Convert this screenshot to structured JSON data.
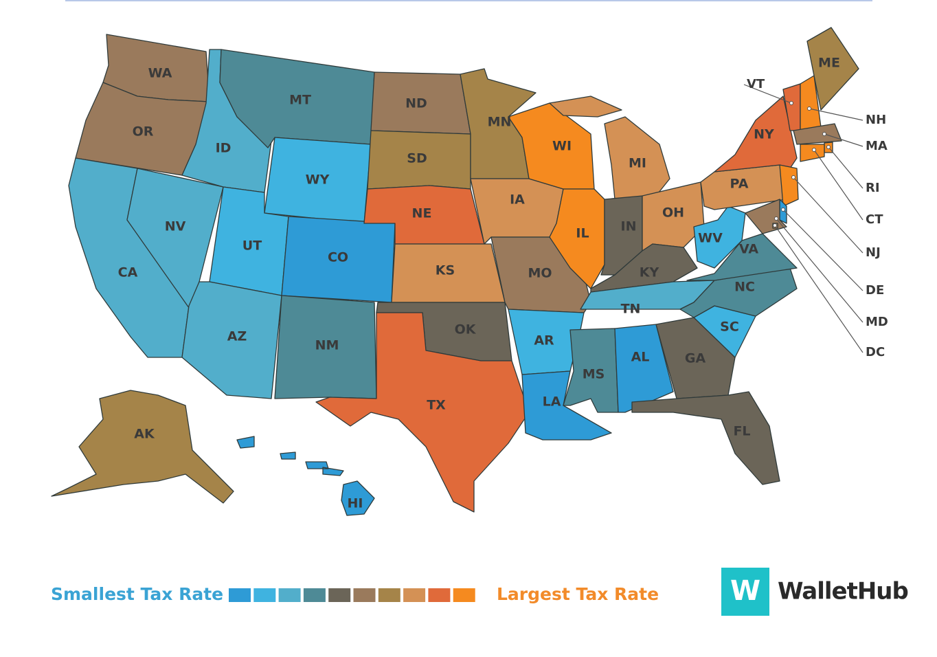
{
  "map": {
    "states": [
      {
        "label": "WA",
        "color": "#9a7a5c"
      },
      {
        "label": "OR",
        "color": "#9a7a5c"
      },
      {
        "label": "CA",
        "color": "#52aecb"
      },
      {
        "label": "NV",
        "color": "#52aecb"
      },
      {
        "label": "ID",
        "color": "#52aecb"
      },
      {
        "label": "MT",
        "color": "#4e8a96"
      },
      {
        "label": "WY",
        "color": "#3fb3e0"
      },
      {
        "label": "UT",
        "color": "#3fb3e0"
      },
      {
        "label": "AZ",
        "color": "#52aecb"
      },
      {
        "label": "CO",
        "color": "#2e9bd6"
      },
      {
        "label": "NM",
        "color": "#4e8a96"
      },
      {
        "label": "ND",
        "color": "#9a7a5c"
      },
      {
        "label": "SD",
        "color": "#a58449"
      },
      {
        "label": "NE",
        "color": "#e06a3a"
      },
      {
        "label": "KS",
        "color": "#d49155"
      },
      {
        "label": "OK",
        "color": "#6b6558"
      },
      {
        "label": "TX",
        "color": "#e06a3a"
      },
      {
        "label": "MN",
        "color": "#a58449"
      },
      {
        "label": "IA",
        "color": "#d49155"
      },
      {
        "label": "MO",
        "color": "#9a7a5c"
      },
      {
        "label": "AR",
        "color": "#3fb3e0"
      },
      {
        "label": "LA",
        "color": "#2e9bd6"
      },
      {
        "label": "WI",
        "color": "#f58a1f"
      },
      {
        "label": "IL",
        "color": "#f58a1f"
      },
      {
        "label": "MI",
        "color": "#d49155"
      },
      {
        "label": "IN",
        "color": "#6b6558"
      },
      {
        "label": "OH",
        "color": "#d49155"
      },
      {
        "label": "KY",
        "color": "#6b6558"
      },
      {
        "label": "TN",
        "color": "#52aecb"
      },
      {
        "label": "MS",
        "color": "#4e8a96"
      },
      {
        "label": "AL",
        "color": "#2e9bd6"
      },
      {
        "label": "GA",
        "color": "#6b6558"
      },
      {
        "label": "FL",
        "color": "#6b6558"
      },
      {
        "label": "SC",
        "color": "#3fb3e0"
      },
      {
        "label": "NC",
        "color": "#4e8a96"
      },
      {
        "label": "VA",
        "color": "#4e8a96"
      },
      {
        "label": "WV",
        "color": "#3fb3e0"
      },
      {
        "label": "PA",
        "color": "#d49155"
      },
      {
        "label": "NY",
        "color": "#e06a3a"
      },
      {
        "label": "VT",
        "color": "#e06a3a"
      },
      {
        "label": "NH",
        "color": "#f58a1f"
      },
      {
        "label": "ME",
        "color": "#a58449"
      },
      {
        "label": "MA",
        "color": "#9a7a5c"
      },
      {
        "label": "RI",
        "color": "#f58a1f"
      },
      {
        "label": "CT",
        "color": "#f58a1f"
      },
      {
        "label": "NJ",
        "color": "#f58a1f"
      },
      {
        "label": "DE",
        "color": "#2e9bd6"
      },
      {
        "label": "MD",
        "color": "#9a7a5c"
      },
      {
        "label": "DC",
        "color": "#d49155"
      },
      {
        "label": "AK",
        "color": "#a58449"
      },
      {
        "label": "HI",
        "color": "#2e9bd6"
      }
    ],
    "legend": {
      "low_label": "Smallest Tax Rate",
      "high_label": "Largest Tax Rate",
      "colors": [
        "#2e9bd6",
        "#3fb3e0",
        "#52aecb",
        "#4e8a96",
        "#6b6558",
        "#9a7a5c",
        "#a58449",
        "#d49155",
        "#e06a3a",
        "#f58a1f"
      ]
    }
  },
  "logo": {
    "mark": "W",
    "name": "WalletHub"
  }
}
